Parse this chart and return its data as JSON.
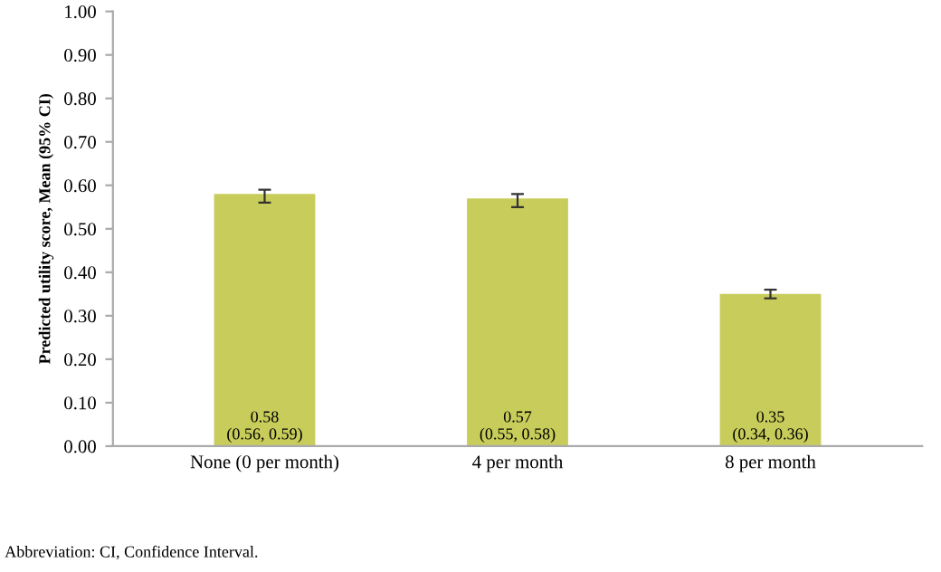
{
  "chart_data": {
    "type": "bar",
    "ylabel": "Predicted utility score, Mean (95% CI)",
    "categories": [
      "None (0 per month)",
      "4 per month",
      "8 per month"
    ],
    "values": [
      0.58,
      0.57,
      0.35
    ],
    "errors": [
      [
        0.56,
        0.59
      ],
      [
        0.55,
        0.58
      ],
      [
        0.34,
        0.36
      ]
    ],
    "value_labels": [
      "0.58\n(0.56, 0.59)",
      "0.57\n(0.55, 0.58)",
      "0.35\n(0.34, 0.36)"
    ],
    "color": "#c8cc5a",
    "ylim": [
      0,
      1
    ],
    "yticks": [
      {
        "value": 0,
        "label": "0.00"
      },
      {
        "value": 0.1,
        "label": "0.10"
      },
      {
        "value": 0.2,
        "label": "0.20"
      },
      {
        "value": 0.3,
        "label": "0.30"
      },
      {
        "value": 0.4,
        "label": "0.40"
      },
      {
        "value": 0.5,
        "label": "0.50"
      },
      {
        "value": 0.6,
        "label": "0.60"
      },
      {
        "value": 0.7,
        "label": "0.70"
      },
      {
        "value": 0.8,
        "label": "0.80"
      },
      {
        "value": 0.9,
        "label": "0.90"
      },
      {
        "value": 1,
        "label": "1.00"
      }
    ],
    "grid": false,
    "annotations": [
      "Abbreviation: CI, Confidence Interval."
    ]
  }
}
